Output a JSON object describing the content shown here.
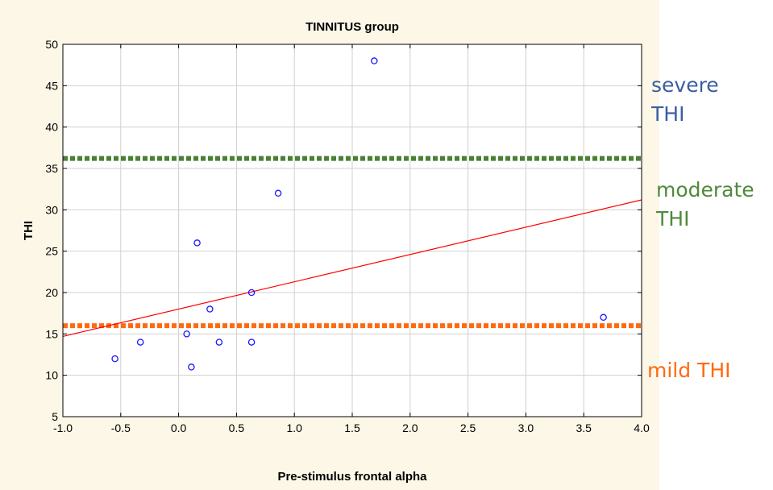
{
  "chart_data": {
    "type": "scatter",
    "title": "TINNITUS group",
    "xlabel": "Pre-stimulus frontal alpha",
    "ylabel": "THI",
    "xlim": [
      -1.0,
      4.0
    ],
    "ylim": [
      5,
      50
    ],
    "x_ticks": [
      "-1.0",
      "-0.5",
      "0.0",
      "0.5",
      "1.0",
      "1.5",
      "2.0",
      "2.5",
      "3.0",
      "3.5",
      "4.0"
    ],
    "y_ticks": [
      "5",
      "10",
      "15",
      "20",
      "25",
      "30",
      "35",
      "40",
      "45",
      "50"
    ],
    "grid": true,
    "points": [
      {
        "x": -0.55,
        "y": 12
      },
      {
        "x": -0.33,
        "y": 14
      },
      {
        "x": 0.07,
        "y": 15
      },
      {
        "x": 0.11,
        "y": 11
      },
      {
        "x": 0.16,
        "y": 26
      },
      {
        "x": 0.27,
        "y": 18
      },
      {
        "x": 0.35,
        "y": 14
      },
      {
        "x": 0.63,
        "y": 20
      },
      {
        "x": 0.63,
        "y": 14
      },
      {
        "x": 0.86,
        "y": 32
      },
      {
        "x": 1.69,
        "y": 48
      },
      {
        "x": 3.67,
        "y": 17
      }
    ],
    "fit_line": {
      "x": [
        -1.0,
        4.0
      ],
      "y": [
        14.7,
        31.2
      ]
    },
    "threshold_lines": [
      {
        "y": 36.2,
        "color": "#4a8033"
      },
      {
        "y": 16.0,
        "color": "#ff6a10"
      }
    ],
    "annotations": [
      {
        "lines": [
          "severe",
          "THI"
        ],
        "color": "#3a5ea0"
      },
      {
        "lines": [
          "moderate",
          "THI"
        ],
        "color": "#4f8a3a"
      },
      {
        "lines": [
          "mild THI"
        ],
        "color": "#ff6a10"
      }
    ],
    "colors": {
      "background": "#fdf7e7",
      "plot_area": "#ffffff",
      "points": "#1a1aff",
      "fit_line": "#ff0000",
      "grid": "#d0d0d0"
    }
  }
}
